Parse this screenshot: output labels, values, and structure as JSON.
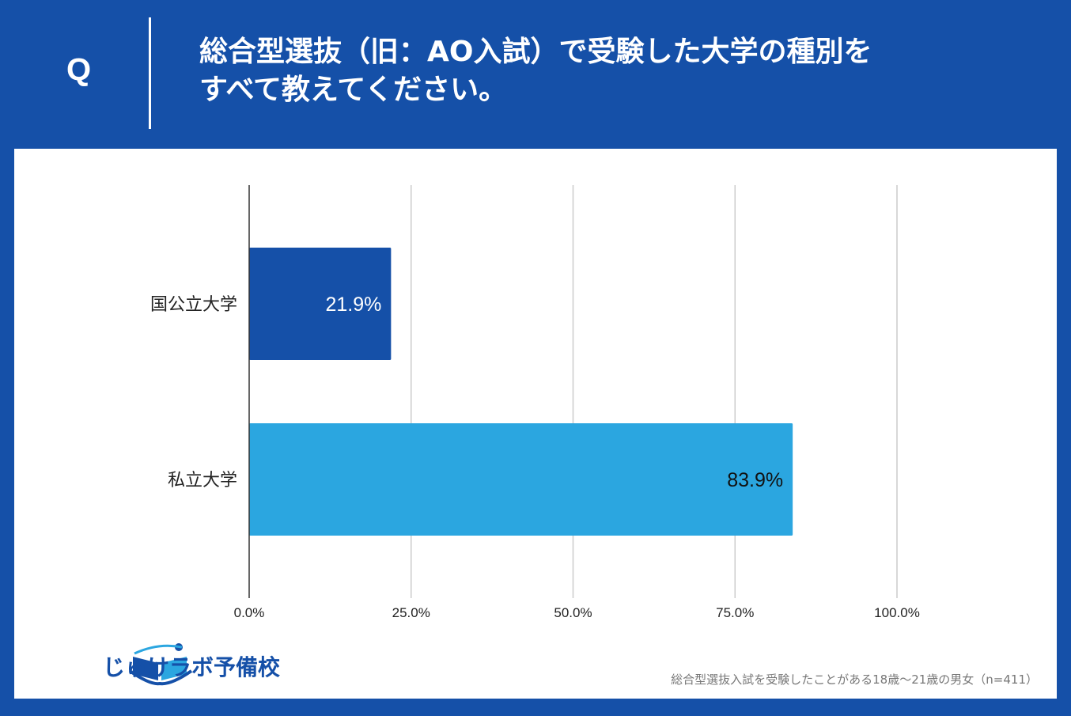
{
  "header": {
    "q_mark": "Q",
    "question_line1": "総合型選抜（旧：AO入試）で受験した大学の種別を",
    "question_line2": "すべて教えてください。"
  },
  "colors": {
    "brand_blue": "#1550a8",
    "bar_dark": "#1550a8",
    "bar_light": "#2ba6e0",
    "grid": "#cccccc"
  },
  "chart_data": {
    "type": "bar",
    "orientation": "horizontal",
    "categories": [
      "国公立大学",
      "私立大学"
    ],
    "values": [
      21.9,
      83.9
    ],
    "value_labels": [
      "21.9%",
      "83.9%"
    ],
    "xlim": [
      0,
      100
    ],
    "xticks": [
      0,
      25,
      50,
      75,
      100
    ],
    "xtick_labels": [
      "0.0%",
      "25.0%",
      "50.0%",
      "75.0%",
      "100.0%"
    ],
    "grid": true,
    "legend": "none"
  },
  "logo": {
    "text": "じゅけラボ予備校",
    "icon": "book-icon"
  },
  "footnote": "総合型選抜入試を受験したことがある18歳～21歳の男女（n=411）"
}
